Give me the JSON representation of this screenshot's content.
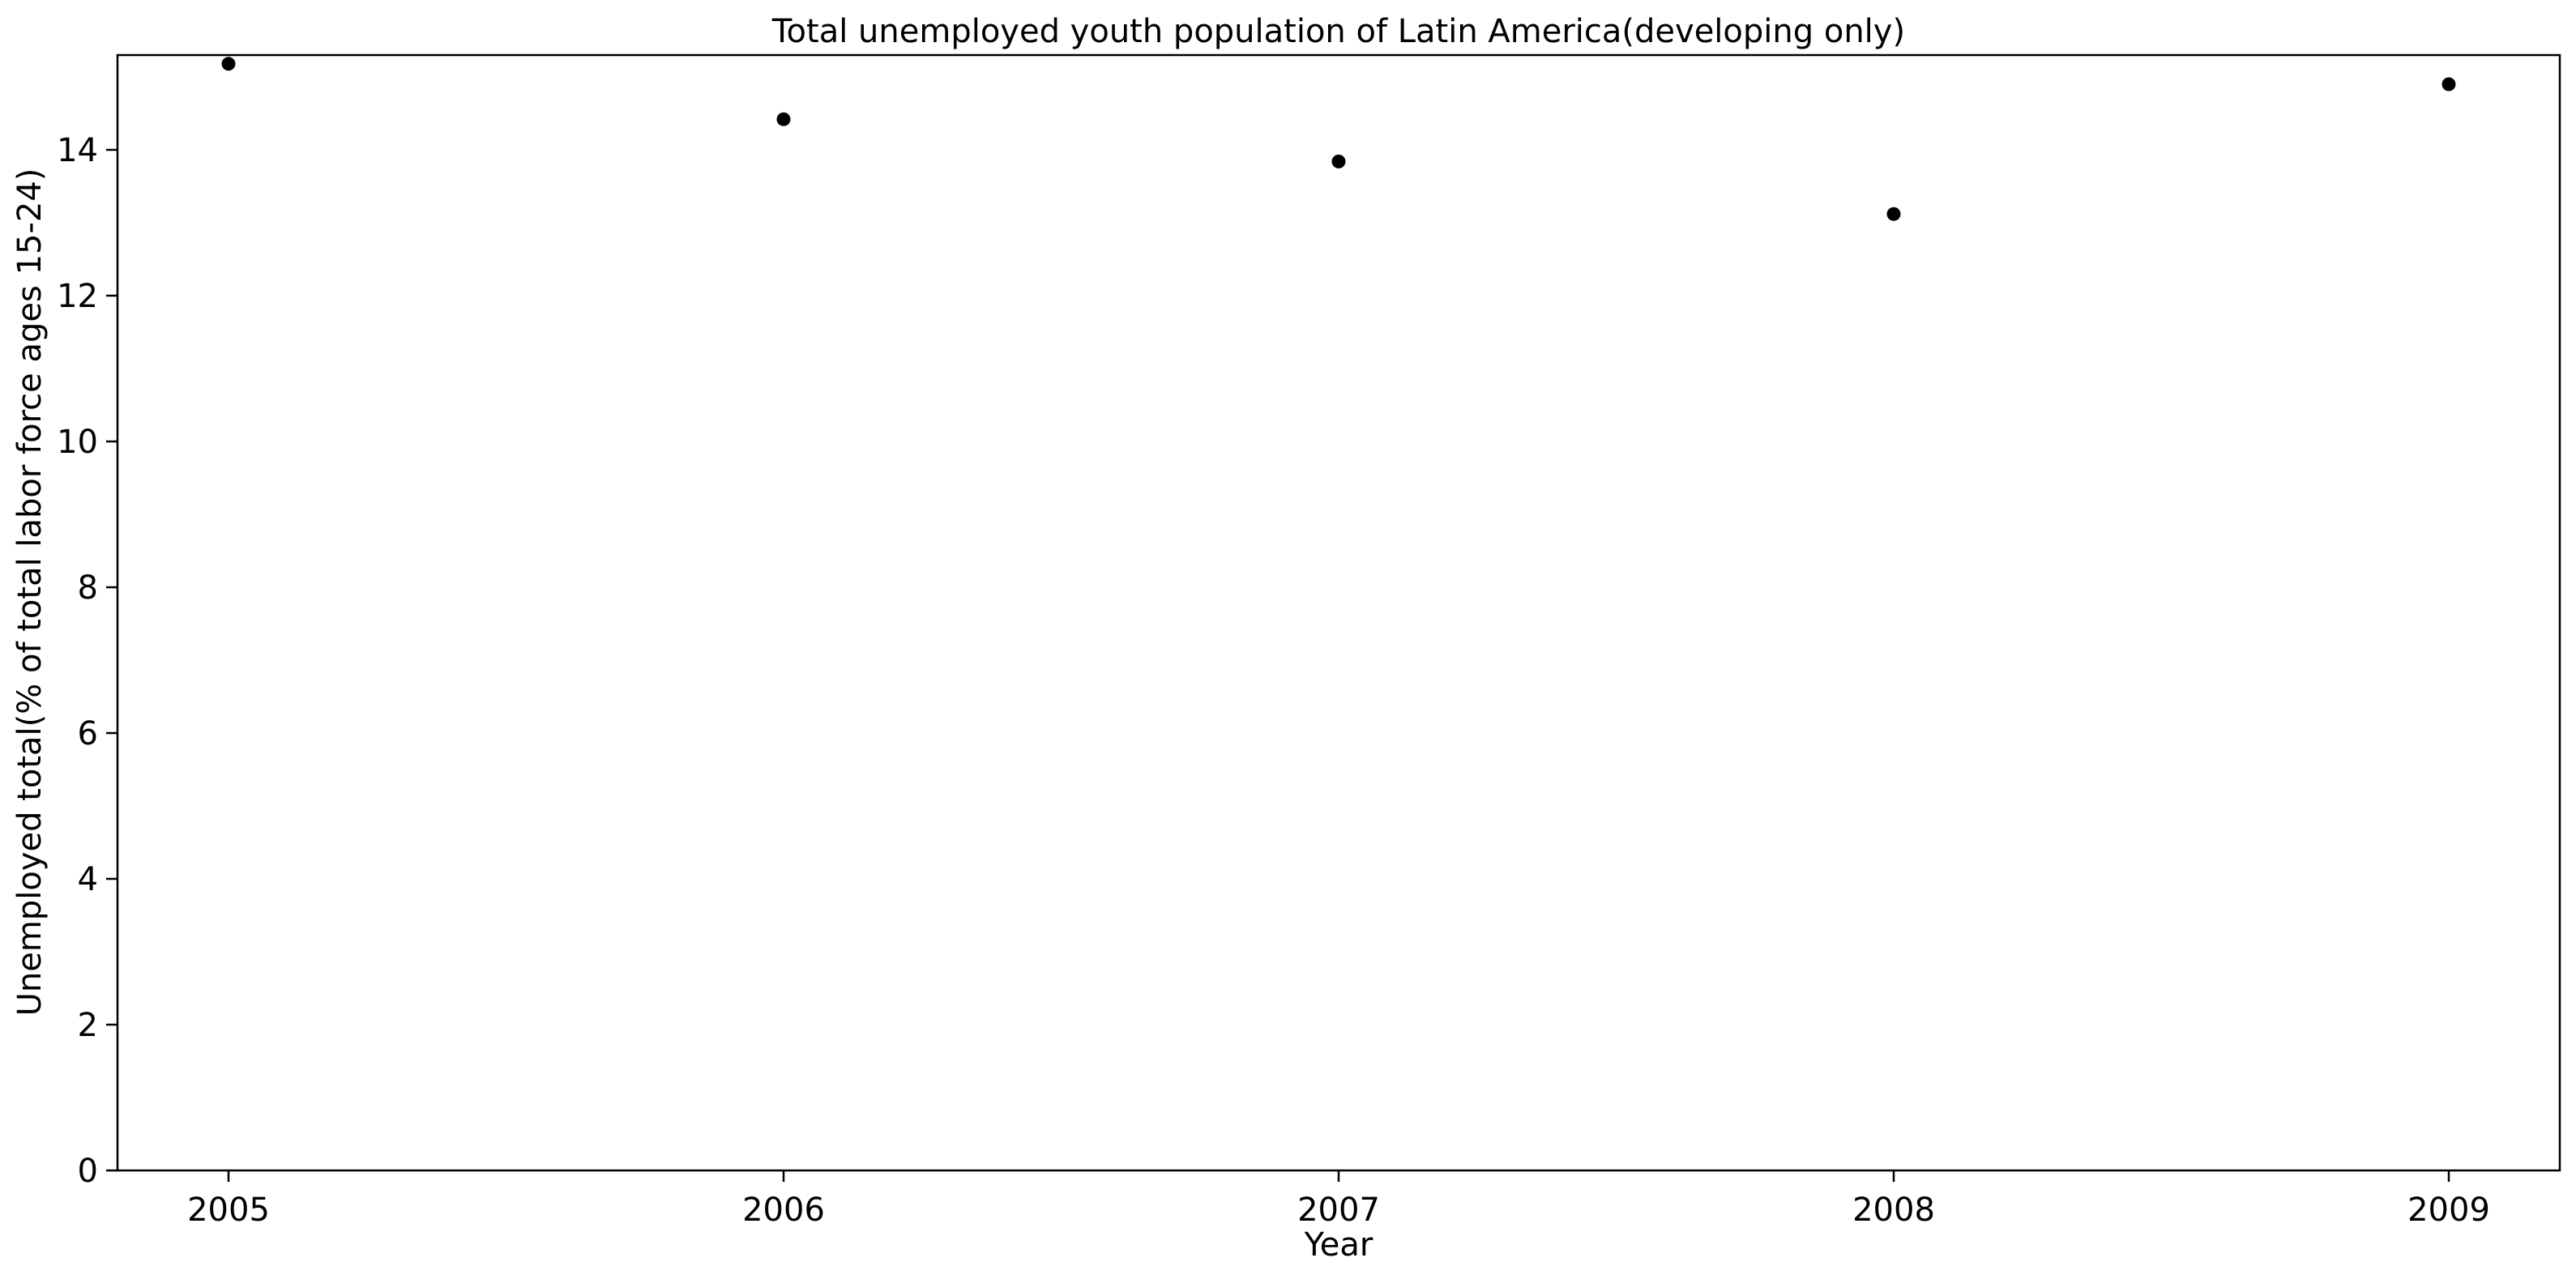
{
  "chart_data": {
    "type": "scatter",
    "title": "Total unemployed youth population of Latin America(developing only)",
    "xlabel": "Year",
    "ylabel": "Unemployed total(% of total labor force ages 15-24)",
    "x": [
      2005,
      2006,
      2007,
      2008,
      2009
    ],
    "y": [
      15.18,
      14.42,
      13.84,
      13.12,
      14.9
    ],
    "xticks": [
      "2005",
      "2006",
      "2007",
      "2008",
      "2009"
    ],
    "yticks": [
      "0",
      "2",
      "4",
      "6",
      "8",
      "10",
      "12",
      "14"
    ],
    "xlim": [
      2004.8,
      2009.2
    ],
    "ylim": [
      0,
      15.3
    ],
    "grid": false,
    "marker_color": "#000000"
  }
}
